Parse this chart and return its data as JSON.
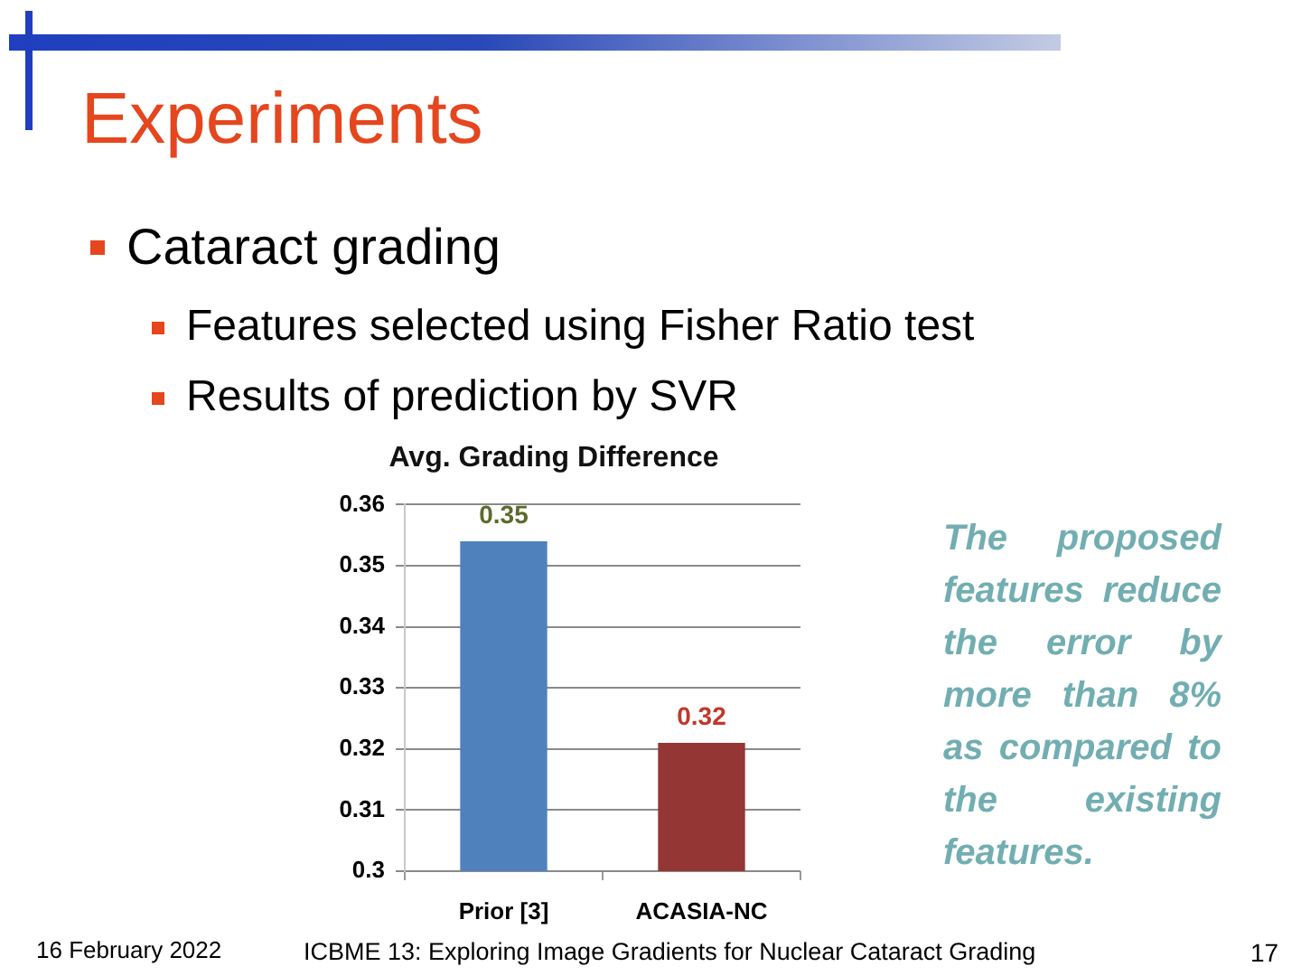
{
  "chart_data": {
    "type": "bar",
    "title": "Avg. Grading Difference",
    "categories": [
      "Prior [3]",
      "ACASIA-NC"
    ],
    "values": [
      0.354,
      0.321
    ],
    "colors": [
      "#4f81bd",
      "#943634"
    ],
    "value_labels": [
      "0.35",
      "0.32"
    ],
    "ylim": [
      0.3,
      0.36
    ],
    "yticks": [
      0.3,
      0.31,
      0.32,
      0.33,
      0.34,
      0.35,
      0.36
    ],
    "grid": "y",
    "annotations": [
      "Experiments",
      "Cataract grading",
      "Features selected using Fisher Ratio test",
      "Results of prediction by SVR",
      "The proposed features reduce the error by more than 8% as compared to the existing features.",
      "16 February 2022",
      "ICBME 13: Exploring Image Gradients for Nuclear Cataract Grading",
      "17"
    ]
  }
}
